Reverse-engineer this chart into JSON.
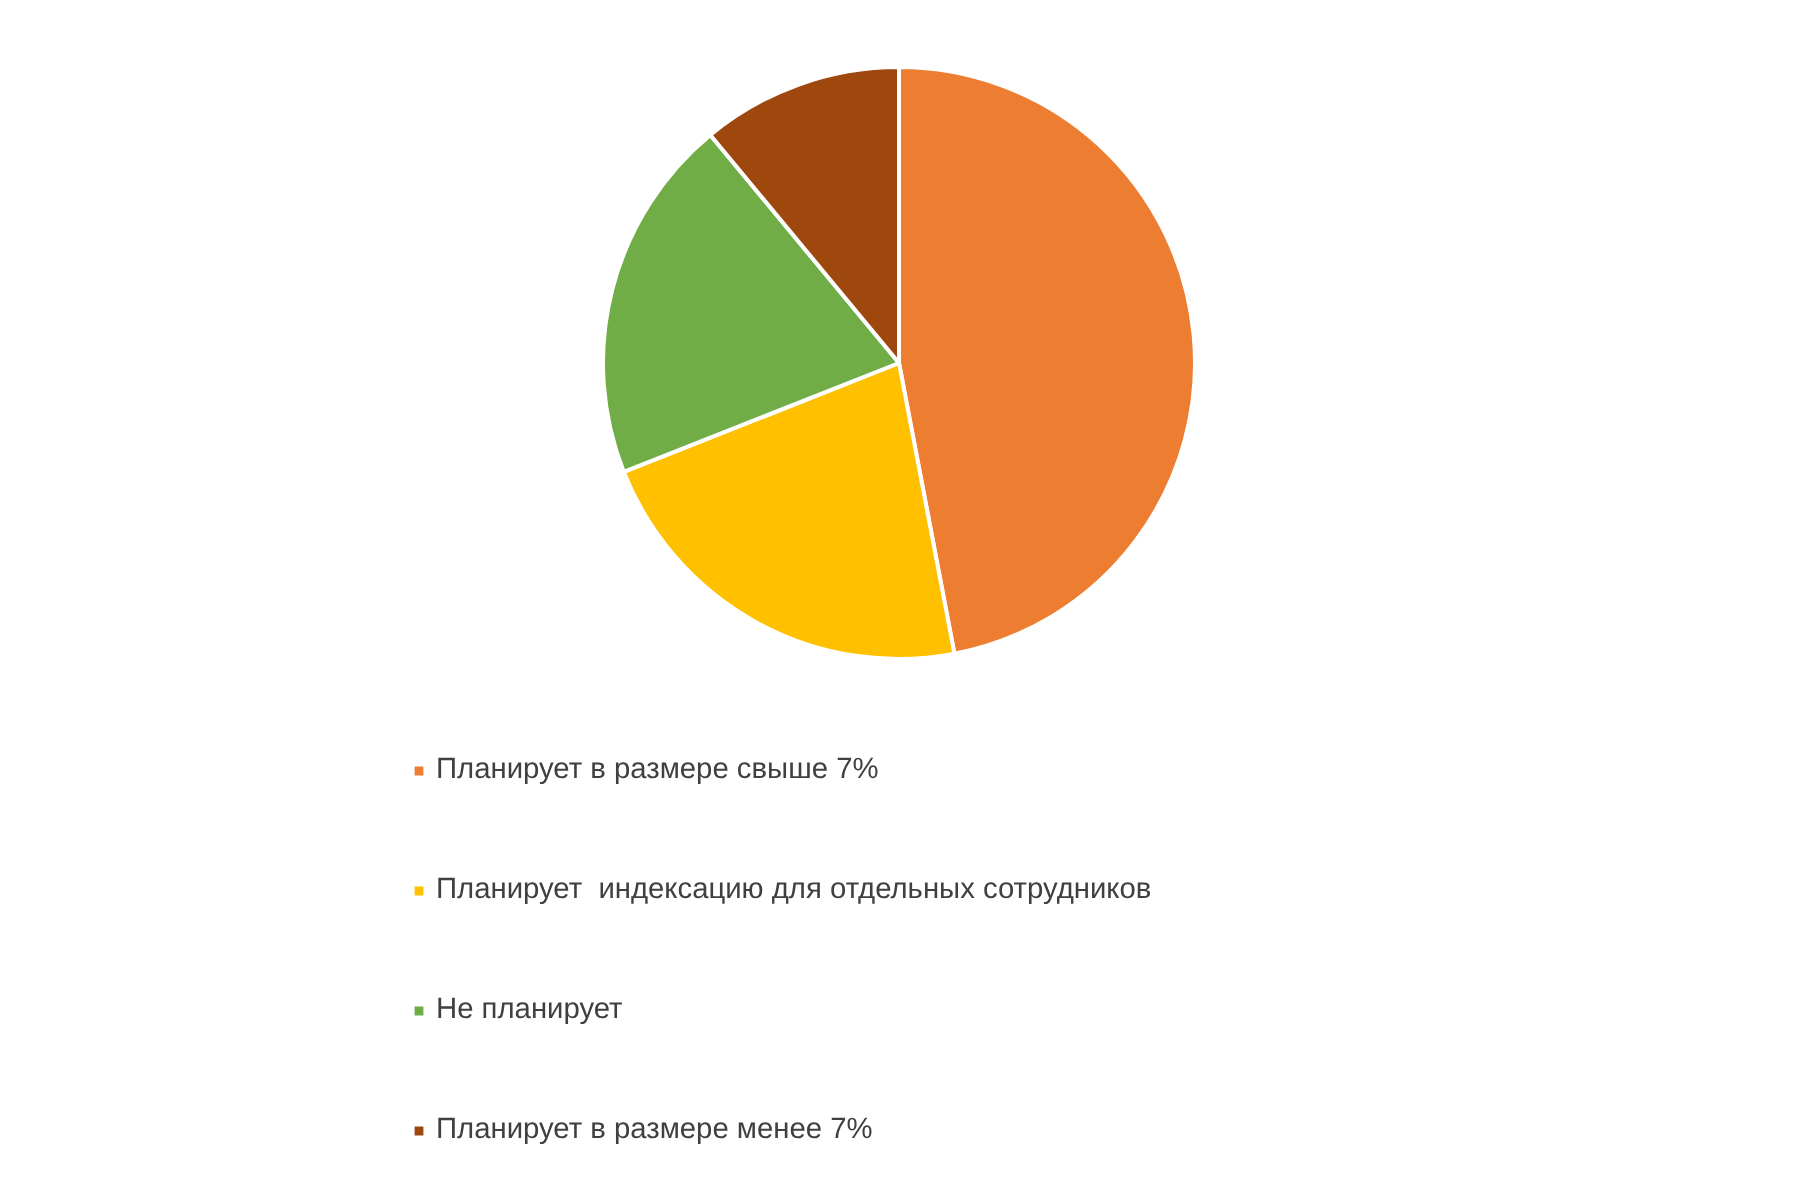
{
  "chart_data": {
    "type": "pie",
    "categories": [
      "Планирует в размере свыше 7%",
      "Планирует  индексацию для отдельных сотрудников",
      "Не планирует",
      "Планирует в размере менее 7%"
    ],
    "values": [
      47,
      22,
      20,
      11
    ],
    "colors": [
      "#ed7d31",
      "#ffc000",
      "#70ad47",
      "#9e480e"
    ],
    "legend": "bottom"
  }
}
